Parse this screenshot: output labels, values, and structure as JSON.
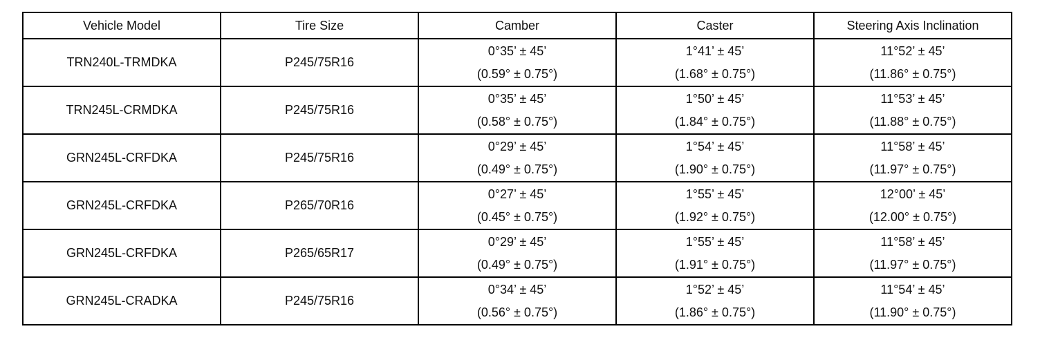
{
  "table": {
    "header": [
      "Vehicle Model",
      "Tire Size",
      "Camber",
      "Caster",
      "Steering Axis Inclination"
    ],
    "rows": [
      [
        "TRN240L-TRMDKA",
        "P245/75R16",
        [
          "0°35’ ± 45’",
          "(0.59° ± 0.75°)"
        ],
        [
          "1°41’ ± 45’",
          "(1.68° ± 0.75°)"
        ],
        [
          "11°52’ ± 45’",
          "(11.86° ± 0.75°)"
        ]
      ],
      [
        "TRN245L-CRMDKA",
        "P245/75R16",
        [
          "0°35’ ± 45’",
          "(0.58° ± 0.75°)"
        ],
        [
          "1°50’ ± 45’",
          "(1.84° ± 0.75°)"
        ],
        [
          "11°53’ ± 45’",
          "(11.88° ± 0.75°)"
        ]
      ],
      [
        "GRN245L-CRFDKA",
        "P245/75R16",
        [
          "0°29’ ± 45’",
          "(0.49° ± 0.75°)"
        ],
        [
          "1°54’ ± 45’",
          "(1.90° ± 0.75°)"
        ],
        [
          "11°58’ ± 45’",
          "(11.97° ± 0.75°)"
        ]
      ],
      [
        "GRN245L-CRFDKA",
        "P265/70R16",
        [
          "0°27’ ± 45’",
          "(0.45° ± 0.75°)"
        ],
        [
          "1°55’ ± 45’",
          "(1.92° ± 0.75°)"
        ],
        [
          "12°00’ ± 45’",
          "(12.00° ± 0.75°)"
        ]
      ],
      [
        "GRN245L-CRFDKA",
        "P265/65R17",
        [
          "0°29’ ± 45’",
          "(0.49° ± 0.75°)"
        ],
        [
          "1°55’ ± 45’",
          "(1.91° ± 0.75°)"
        ],
        [
          "11°58’ ± 45’",
          "(11.97° ± 0.75°)"
        ]
      ],
      [
        "GRN245L-CRADKA",
        "P245/75R16",
        [
          "0°34’ ± 45’",
          "(0.56° ± 0.75°)"
        ],
        [
          "1°52’ ± 45’",
          "(1.86° ± 0.75°)"
        ],
        [
          "11°54’ ± 45’",
          "(11.90° ± 0.75°)"
        ]
      ]
    ]
  }
}
